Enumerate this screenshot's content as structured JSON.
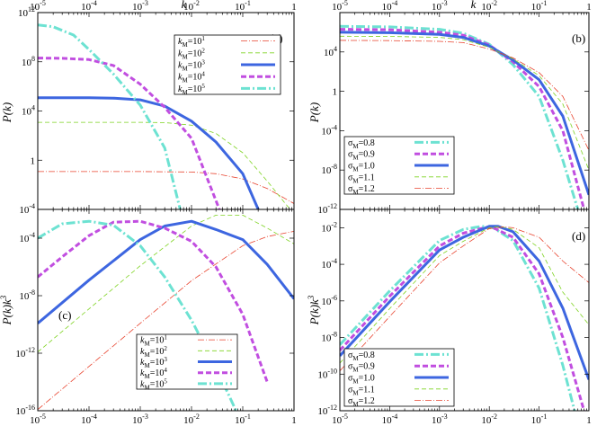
{
  "figure": {
    "x_axis_label": "k",
    "y_axis_labels": {
      "a": "P(k)",
      "b": "P(k)",
      "c": "P(k)k³",
      "d": "P(k)k³"
    }
  },
  "series_styles": {
    "kM": [
      {
        "name": "kM=10-1",
        "color": "#e8432e",
        "width": 0.8,
        "dash": "7,2,1,2"
      },
      {
        "name": "kM=10-2",
        "color": "#7ed321",
        "width": 0.8,
        "dash": "5,3"
      },
      {
        "name": "kM=10-3",
        "color": "#3d66e0",
        "width": 3.0,
        "dash": ""
      },
      {
        "name": "kM=10-4",
        "color": "#c14ee0",
        "width": 3.0,
        "dash": "6,3"
      },
      {
        "name": "kM=10-5",
        "color": "#6de2d2",
        "width": 3.0,
        "dash": "10,3,2,3"
      }
    ],
    "sigma": [
      {
        "name": "σM=0.8",
        "color": "#6de2d2",
        "width": 3.0,
        "dash": "10,3,2,3"
      },
      {
        "name": "σM=0.9",
        "color": "#c14ee0",
        "width": 3.0,
        "dash": "6,3"
      },
      {
        "name": "σM=1.0",
        "color": "#3d66e0",
        "width": 3.0,
        "dash": ""
      },
      {
        "name": "σM=1.1",
        "color": "#7ed321",
        "width": 0.8,
        "dash": "5,3"
      },
      {
        "name": "σM=1.2",
        "color": "#e8432e",
        "width": 0.8,
        "dash": "7,2,1,2"
      }
    ]
  },
  "chart_data": [
    {
      "panel": "(a)",
      "type": "line",
      "log_x": true,
      "log_y": true,
      "xlim": [
        1e-05,
        1
      ],
      "ylim": [
        0.0001,
        1000000000000.0
      ],
      "xlabel": "k",
      "ylabel": "P(k)",
      "x_tick_side": "top",
      "x_ticks": [
        {
          "v": 1e-05,
          "t": "10",
          "e": "-5"
        },
        {
          "v": 0.0001,
          "t": "10",
          "e": "-4"
        },
        {
          "v": 0.001,
          "t": "10",
          "e": "-3"
        },
        {
          "v": 0.01,
          "t": "10",
          "e": "-2"
        },
        {
          "v": 0.1,
          "t": "10",
          "e": "-1"
        },
        {
          "v": 1,
          "t": "1",
          "e": ""
        }
      ],
      "y_ticks": [
        {
          "v": 1000000000000.0,
          "t": "10",
          "e": "12"
        },
        {
          "v": 100000000.0,
          "t": "10",
          "e": "8"
        },
        {
          "v": 10000.0,
          "t": "10",
          "e": "4"
        },
        {
          "v": 1,
          "t": "1",
          "e": ""
        },
        {
          "v": 0.0001,
          "t": "10",
          "e": "-4"
        }
      ],
      "legend": "top-right",
      "series": [
        {
          "name": "kM=10-1",
          "k": [
            1e-05,
            0.001,
            0.01,
            0.03,
            0.1,
            0.3,
            1
          ],
          "y": [
            0.12,
            0.12,
            0.11,
            0.08,
            0.03,
            0.005,
            0.0003
          ]
        },
        {
          "name": "kM=10-2",
          "k": [
            1e-05,
            0.001,
            0.003,
            0.01,
            0.03,
            0.1,
            0.3,
            1
          ],
          "y": [
            1200,
            1200,
            1150,
            700,
            150,
            4,
            0.02,
            4e-05
          ]
        },
        {
          "name": "kM=10-3",
          "k": [
            1e-05,
            0.0001,
            0.0003,
            0.001,
            0.003,
            0.01,
            0.03,
            0.1,
            0.2
          ],
          "y": [
            120000.0,
            120000.0,
            110000.0,
            80000.0,
            25000.0,
            1500,
            30,
            0.08,
            0.0001
          ]
        },
        {
          "name": "kM=10-4",
          "k": [
            1e-05,
            3e-05,
            0.0001,
            0.0003,
            0.001,
            0.003,
            0.01,
            0.035
          ],
          "y": [
            200000000.0,
            190000000.0,
            150000000.0,
            50000000.0,
            1500000.0,
            20000.0,
            60,
            0.0001
          ]
        },
        {
          "name": "kM=10-5",
          "k": [
            1e-05,
            2e-05,
            5e-05,
            0.0001,
            0.0003,
            0.001,
            0.003,
            0.006
          ],
          "y": [
            100000000000.0,
            70000000000.0,
            15000000000.0,
            1000000000.0,
            10000000.0,
            30000.0,
            10,
            0.0001
          ]
        }
      ]
    },
    {
      "panel": "(b)",
      "type": "line",
      "log_x": true,
      "log_y": true,
      "xlim": [
        1e-05,
        1
      ],
      "ylim": [
        1e-12,
        100000000.0
      ],
      "xlabel": "k",
      "ylabel": "P(k)",
      "x_tick_side": "top",
      "x_ticks": [
        {
          "v": 1e-05,
          "t": "10",
          "e": "-5"
        },
        {
          "v": 0.0001,
          "t": "10",
          "e": "-4"
        },
        {
          "v": 0.001,
          "t": "10",
          "e": "-3"
        },
        {
          "v": 0.01,
          "t": "10",
          "e": "-2"
        },
        {
          "v": 0.1,
          "t": "10",
          "e": "-1"
        },
        {
          "v": 1,
          "t": "1",
          "e": ""
        }
      ],
      "y_ticks": [
        {
          "v": 10000.0,
          "t": "10",
          "e": "4"
        },
        {
          "v": 1,
          "t": "1",
          "e": ""
        },
        {
          "v": 0.0001,
          "t": "10",
          "e": "-4"
        },
        {
          "v": 1e-08,
          "t": "10",
          "e": "-8"
        },
        {
          "v": 1e-12,
          "t": "10",
          "e": "-12"
        }
      ],
      "legend": "bottom-left",
      "series": [
        {
          "name": "σM=0.8",
          "k": [
            1e-05,
            0.0001,
            0.001,
            0.003,
            0.01,
            0.03,
            0.1,
            0.3,
            0.6
          ],
          "y": [
            4000000.0,
            3500000.0,
            2000000.0,
            800000.0,
            60000.0,
            500.0,
            0.3,
            1e-07,
            1e-12
          ]
        },
        {
          "name": "σM=0.9",
          "k": [
            1e-05,
            0.0001,
            0.001,
            0.003,
            0.01,
            0.03,
            0.1,
            0.3,
            0.8
          ],
          "y": [
            2000000.0,
            1800000.0,
            1000000.0,
            500000.0,
            50000.0,
            1000.0,
            3,
            0.0001,
            1e-12
          ]
        },
        {
          "name": "σM=1.0",
          "k": [
            1e-05,
            0.0001,
            0.001,
            0.003,
            0.01,
            0.03,
            0.1,
            0.3,
            1
          ],
          "y": [
            1000000.0,
            900000.0,
            600000.0,
            300000.0,
            40000.0,
            1500.0,
            15,
            0.003,
            3e-11
          ]
        },
        {
          "name": "σM=1.1",
          "k": [
            1e-05,
            0.0001,
            0.001,
            0.003,
            0.01,
            0.03,
            0.1,
            0.3,
            1
          ],
          "y": [
            400000.0,
            380000.0,
            300000.0,
            180000.0,
            30000.0,
            2000.0,
            40,
            0.05,
            1e-08
          ]
        },
        {
          "name": "σM=1.2",
          "k": [
            1e-05,
            0.0001,
            0.001,
            0.003,
            0.01,
            0.03,
            0.1,
            0.3,
            1
          ],
          "y": [
            150000.0,
            140000.0,
            120000.0,
            90000.0,
            20000.0,
            2500.0,
            80,
            0.3,
            1e-06
          ]
        }
      ]
    },
    {
      "panel": "(c)",
      "type": "line",
      "log_x": true,
      "log_y": true,
      "xlim": [
        1e-05,
        1
      ],
      "ylim": [
        1e-16,
        0.01
      ],
      "xlabel": "k",
      "ylabel": "P(k)k³",
      "x_tick_side": "bottom",
      "x_ticks": [
        {
          "v": 1e-05,
          "t": "10",
          "e": "-5"
        },
        {
          "v": 0.0001,
          "t": "10",
          "e": "-4"
        },
        {
          "v": 0.001,
          "t": "10",
          "e": "-3"
        },
        {
          "v": 0.01,
          "t": "10",
          "e": "-2"
        },
        {
          "v": 0.1,
          "t": "10",
          "e": "-1"
        },
        {
          "v": 1,
          "t": "1",
          "e": ""
        }
      ],
      "y_ticks": [
        {
          "v": 0.0001,
          "t": "10",
          "e": "-4"
        },
        {
          "v": 1e-08,
          "t": "10",
          "e": "-8"
        },
        {
          "v": 1e-12,
          "t": "10",
          "e": "-12"
        },
        {
          "v": 1e-16,
          "t": "10",
          "e": "-16"
        }
      ],
      "legend": "bottom-right",
      "series": [
        {
          "name": "kM=10-1",
          "k": [
            1e-05,
            0.0001,
            0.001,
            0.01,
            0.1,
            0.3,
            1
          ],
          "y": [
            1.2e-16,
            1.2e-13,
            1.2e-10,
            1.1e-07,
            3e-05,
            0.00013,
            0.0003
          ]
        },
        {
          "name": "kM=10-2",
          "k": [
            1e-05,
            0.0001,
            0.001,
            0.01,
            0.03,
            0.1,
            0.3,
            1
          ],
          "y": [
            1.2e-12,
            1.2e-09,
            1.2e-06,
            0.0007,
            0.004,
            0.004,
            0.0005,
            4e-05
          ]
        },
        {
          "name": "kM=10-3",
          "k": [
            1e-05,
            0.0001,
            0.001,
            0.003,
            0.01,
            0.03,
            0.1,
            0.3,
            1
          ],
          "y": [
            1.2e-10,
            1.2e-07,
            8e-05,
            0.0007,
            0.0015,
            0.0004,
            8e-05,
            1.5e-06,
            6e-09
          ]
        },
        {
          "name": "kM=10-4",
          "k": [
            1e-05,
            3e-05,
            0.0001,
            0.0003,
            0.001,
            0.003,
            0.01,
            0.03,
            0.1,
            0.3
          ],
          "y": [
            2e-07,
            5e-06,
            0.00015,
            0.0013,
            0.0015,
            0.0005,
            6e-05,
            1e-06,
            5e-10,
            1e-14
          ]
        },
        {
          "name": "kM=10-5",
          "k": [
            1e-05,
            3e-05,
            0.0001,
            0.0003,
            0.001,
            0.003,
            0.01,
            0.03,
            0.1
          ],
          "y": [
            0.0001,
            0.001,
            0.0015,
            0.0008,
            3e-05,
            2e-07,
            2e-10,
            1e-13,
            1e-17
          ]
        }
      ]
    },
    {
      "panel": "(d)",
      "type": "line",
      "log_x": true,
      "log_y": true,
      "xlim": [
        1e-05,
        1
      ],
      "ylim": [
        1e-12,
        0.1
      ],
      "xlabel": "k",
      "ylabel": "P(k)k³",
      "x_tick_side": "bottom",
      "x_ticks": [
        {
          "v": 1e-05,
          "t": "10",
          "e": "-5"
        },
        {
          "v": 0.0001,
          "t": "10",
          "e": "-4"
        },
        {
          "v": 0.001,
          "t": "10",
          "e": "-3"
        },
        {
          "v": 0.01,
          "t": "10",
          "e": "-2"
        },
        {
          "v": 0.1,
          "t": "10",
          "e": "-1"
        },
        {
          "v": 1,
          "t": "1",
          "e": ""
        }
      ],
      "y_ticks": [
        {
          "v": 0.01,
          "t": "10",
          "e": "-2"
        },
        {
          "v": 0.0001,
          "t": "10",
          "e": "-4"
        },
        {
          "v": 1e-06,
          "t": "10",
          "e": "-6"
        },
        {
          "v": 1e-08,
          "t": "10",
          "e": "-8"
        },
        {
          "v": 1e-10,
          "t": "10",
          "e": "-10"
        },
        {
          "v": 1e-12,
          "t": "10",
          "e": "-12"
        }
      ],
      "legend": "bottom-left",
      "series": [
        {
          "name": "σM=0.8",
          "k": [
            1e-05,
            0.0001,
            0.001,
            0.003,
            0.007,
            0.012,
            0.03,
            0.1,
            0.3,
            0.6
          ],
          "y": [
            4e-09,
            3.5e-06,
            0.002,
            0.008,
            0.012,
            0.01,
            0.002,
            5e-06,
            3e-10,
            2e-13
          ]
        },
        {
          "name": "σM=0.9",
          "k": [
            1e-05,
            0.0001,
            0.001,
            0.003,
            0.008,
            0.012,
            0.03,
            0.1,
            0.3,
            0.8
          ],
          "y": [
            2e-09,
            1.8e-06,
            0.001,
            0.005,
            0.01,
            0.01,
            0.003,
            3e-05,
            1e-08,
            1e-12
          ]
        },
        {
          "name": "σM=1.0",
          "k": [
            1e-05,
            0.0001,
            0.001,
            0.003,
            0.01,
            0.015,
            0.03,
            0.1,
            0.3,
            1
          ],
          "y": [
            1e-09,
            9e-07,
            0.0006,
            0.003,
            0.012,
            0.012,
            0.006,
            0.00015,
            4e-07,
            5e-11
          ]
        },
        {
          "name": "σM=1.1",
          "k": [
            1e-05,
            0.0001,
            0.001,
            0.003,
            0.01,
            0.016,
            0.03,
            0.1,
            0.3,
            1
          ],
          "y": [
            4e-10,
            3.8e-07,
            0.0003,
            0.0018,
            0.01,
            0.012,
            0.008,
            0.0008,
            3e-06,
            5e-08
          ]
        },
        {
          "name": "σM=1.2",
          "k": [
            1e-05,
            0.0001,
            0.001,
            0.003,
            0.01,
            0.02,
            0.03,
            0.1,
            0.3,
            1
          ],
          "y": [
            1.5e-10,
            1.4e-07,
            0.00012,
            0.001,
            0.009,
            0.011,
            0.01,
            0.003,
            0.00015,
            1e-05
          ]
        }
      ]
    }
  ]
}
